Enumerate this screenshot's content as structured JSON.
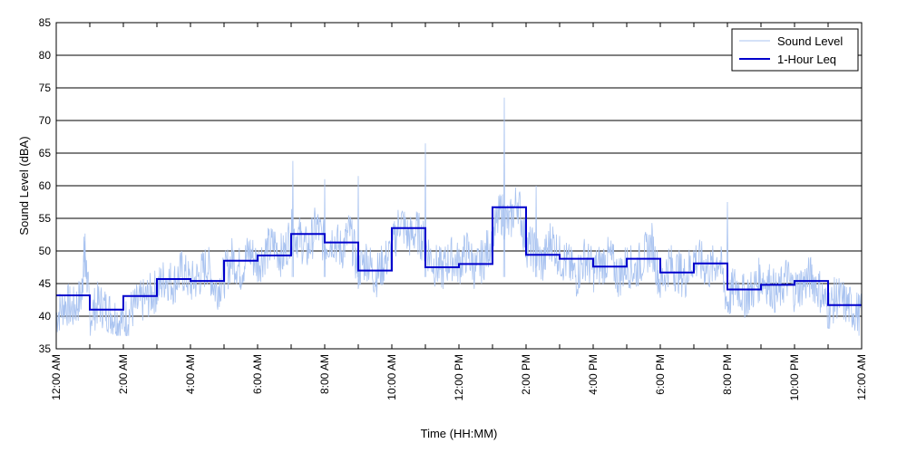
{
  "chart_data": {
    "type": "line",
    "xlabel": "Time (HH:MM)",
    "ylabel": "Sound Level (dBA)",
    "xlim": [
      0,
      24
    ],
    "ylim": [
      35,
      85
    ],
    "y_ticks": [
      35,
      40,
      45,
      50,
      55,
      60,
      65,
      70,
      75,
      80,
      85
    ],
    "x_ticks": [
      {
        "hour": 0,
        "label": "12:00 AM"
      },
      {
        "hour": 2,
        "label": "2:00 AM"
      },
      {
        "hour": 4,
        "label": "4:00 AM"
      },
      {
        "hour": 6,
        "label": "6:00 AM"
      },
      {
        "hour": 8,
        "label": "8:00 AM"
      },
      {
        "hour": 10,
        "label": "10:00 AM"
      },
      {
        "hour": 12,
        "label": "12:00 PM"
      },
      {
        "hour": 14,
        "label": "2:00 PM"
      },
      {
        "hour": 16,
        "label": "4:00 PM"
      },
      {
        "hour": 18,
        "label": "6:00 PM"
      },
      {
        "hour": 20,
        "label": "8:00 PM"
      },
      {
        "hour": 22,
        "label": "10:00 PM"
      },
      {
        "hour": 24,
        "label": "12:00 AM"
      }
    ],
    "grid": "horizontal",
    "legend_position": "top-right",
    "series": [
      {
        "name": "Sound Level",
        "color": "#a9c3f0",
        "style": "thin-noisy-line",
        "x": [
          0,
          0.25,
          0.5,
          0.75,
          0.85,
          1,
          1.25,
          1.5,
          1.75,
          2,
          2.25,
          2.5,
          2.75,
          3,
          3.25,
          3.5,
          3.75,
          4,
          4.25,
          4.5,
          4.75,
          5,
          5.25,
          5.5,
          5.75,
          6,
          6.25,
          6.5,
          6.75,
          7,
          7.25,
          7.5,
          7.75,
          8,
          8.25,
          8.5,
          8.75,
          9,
          9.25,
          9.5,
          9.75,
          10,
          10.25,
          10.5,
          10.75,
          11,
          11.25,
          11.5,
          11.75,
          12,
          12.25,
          12.5,
          12.75,
          13,
          13.25,
          13.5,
          13.75,
          14,
          14.25,
          14.5,
          14.75,
          15,
          15.25,
          15.5,
          15.75,
          16,
          16.25,
          16.5,
          16.75,
          17,
          17.25,
          17.5,
          17.75,
          18,
          18.25,
          18.5,
          18.75,
          19,
          19.25,
          19.5,
          19.75,
          20,
          20.25,
          20.5,
          20.75,
          21,
          21.25,
          21.5,
          21.75,
          22,
          22.25,
          22.5,
          22.75,
          23,
          23.25,
          23.5,
          23.75,
          24
        ],
        "values": [
          40,
          42,
          41,
          43,
          51,
          40,
          42,
          41,
          40,
          39,
          41,
          42,
          43,
          44,
          46,
          45,
          47,
          45,
          46,
          48,
          44,
          46,
          49,
          47,
          50,
          48,
          50,
          51,
          49,
          53,
          52,
          50,
          54,
          51,
          52,
          50,
          53,
          47,
          49,
          46,
          48,
          50,
          55,
          52,
          53,
          51,
          48,
          47,
          49,
          48,
          50,
          47,
          49,
          52,
          56,
          54,
          58,
          51,
          50,
          48,
          52,
          49,
          48,
          46,
          49,
          47,
          48,
          49,
          46,
          48,
          47,
          49,
          51,
          45,
          48,
          47,
          46,
          49,
          48,
          47,
          49,
          42,
          45,
          43,
          44,
          46,
          45,
          43,
          46,
          44,
          45,
          46,
          44,
          41,
          43,
          42,
          41,
          40
        ]
      },
      {
        "name": "1-Hour Leq",
        "color": "#0000cc",
        "style": "step",
        "x": [
          0,
          1,
          2,
          3,
          4,
          5,
          6,
          7,
          8,
          9,
          10,
          11,
          12,
          13,
          14,
          15,
          16,
          17,
          18,
          19,
          20,
          21,
          22,
          23
        ],
        "values": [
          43.2,
          41.0,
          43.1,
          45.7,
          45.4,
          48.5,
          49.3,
          52.6,
          51.3,
          47.0,
          53.5,
          47.5,
          48.0,
          56.7,
          49.4,
          48.8,
          47.6,
          48.8,
          46.7,
          48.1,
          44.1,
          44.8,
          45.4,
          41.7
        ]
      }
    ]
  }
}
